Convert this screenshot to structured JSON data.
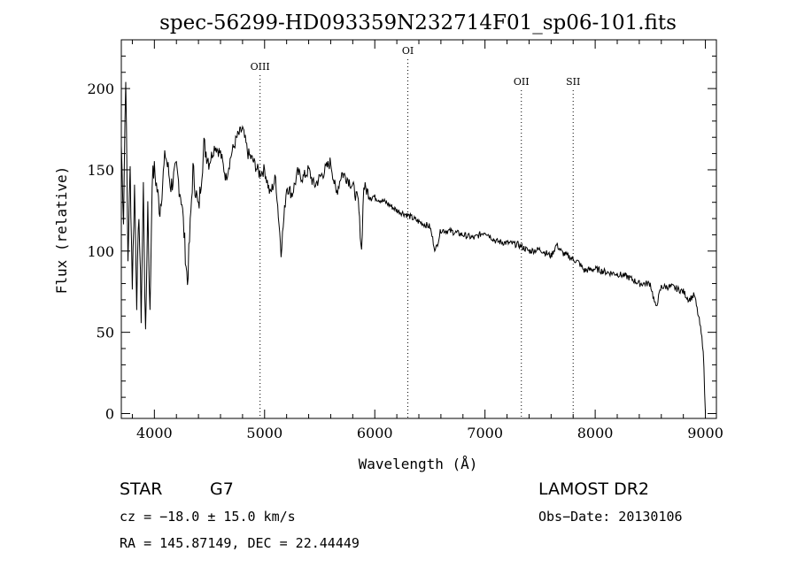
{
  "chart_data": {
    "type": "line",
    "title": "spec-56299-HD093359N232714F01_sp06-101.fits",
    "xlabel": "Wavelength (Å)",
    "ylabel": "Flux (relative)",
    "xlim": [
      3700,
      9100
    ],
    "ylim": [
      -3,
      230
    ],
    "x_ticks": [
      4000,
      5000,
      6000,
      7000,
      8000,
      9000
    ],
    "x_tick_labels": [
      "4000",
      "5000",
      "6000",
      "7000",
      "8000",
      "9000"
    ],
    "y_ticks": [
      0,
      50,
      100,
      150,
      200
    ],
    "y_tick_labels": [
      "0",
      "50",
      "100",
      "150",
      "200"
    ],
    "grid": false,
    "line_marks": [
      {
        "label": "OIII",
        "x": 4959
      },
      {
        "label": "OI",
        "x": 6300
      },
      {
        "label": "OII",
        "x": 7330
      },
      {
        "label": "SII",
        "x": 7800
      }
    ],
    "series": [
      {
        "x": [
          3700,
          3720,
          3740,
          3760,
          3780,
          3800,
          3820,
          3840,
          3860,
          3880,
          3900,
          3920,
          3940,
          3960,
          3980,
          4000,
          4050,
          4100,
          4150,
          4200,
          4250,
          4300,
          4350,
          4400,
          4450,
          4500,
          4550,
          4600,
          4650,
          4700,
          4750,
          4800,
          4850,
          4900,
          4950,
          5000,
          5050,
          5100,
          5150,
          5200,
          5250,
          5300,
          5350,
          5400,
          5450,
          5500,
          5550,
          5600,
          5650,
          5700,
          5750,
          5800,
          5850,
          5880,
          5900,
          5950,
          6000,
          6100,
          6200,
          6300,
          6400,
          6500,
          6550,
          6600,
          6700,
          6800,
          6900,
          7000,
          7100,
          7200,
          7300,
          7400,
          7500,
          7600,
          7650,
          7700,
          7800,
          7850,
          7900,
          8000,
          8100,
          8200,
          8300,
          8400,
          8500,
          8550,
          8600,
          8700,
          8800,
          8850,
          8900,
          8950,
          8980,
          9000
        ],
        "y": [
          165,
          120,
          210,
          95,
          150,
          80,
          140,
          70,
          125,
          60,
          140,
          45,
          130,
          60,
          145,
          150,
          125,
          160,
          140,
          150,
          130,
          80,
          150,
          125,
          165,
          155,
          165,
          160,
          145,
          160,
          170,
          175,
          160,
          155,
          148,
          150,
          135,
          145,
          100,
          140,
          135,
          148,
          145,
          150,
          140,
          145,
          150,
          155,
          135,
          148,
          145,
          140,
          130,
          100,
          140,
          135,
          133,
          130,
          125,
          122,
          118,
          115,
          100,
          113,
          112,
          110,
          108,
          112,
          106,
          105,
          104,
          100,
          101,
          97,
          104,
          99,
          95,
          93,
          88,
          89,
          87,
          86,
          84,
          80,
          80,
          65,
          78,
          78,
          75,
          70,
          73,
          55,
          40,
          0
        ]
      }
    ]
  },
  "info": {
    "class": "STAR",
    "subclass": "G7",
    "survey": "LAMOST DR2",
    "cz": "cz = −18.0 ± 15.0 km/s",
    "obsdate": "Obs−Date: 20130106",
    "radec": "RA = 145.87149, DEC =  22.44449"
  }
}
